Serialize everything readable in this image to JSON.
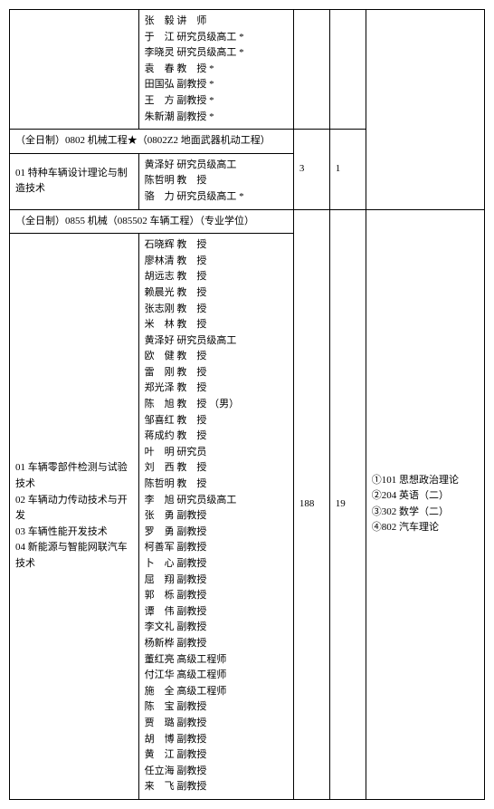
{
  "row1_faculty": [
    "张　毅 讲　师",
    "于　江 研究员级高工 *",
    "李晓灵 研究员级高工 *",
    "袁　春 教　授 *",
    "田国弘 副教授 *",
    "王　方 副教授 *",
    "朱新潮 副教授 *"
  ],
  "section2_header": "（全日制）0802 机械工程★（0802Z2 地面武器机动工程）",
  "section2_direction": "01 特种车辆设计理论与制造技术",
  "section2_faculty": [
    "黄泽好 研究员级高工",
    "陈哲明 教　授",
    "骆　力 研究员级高工 *"
  ],
  "section2_num1": "3",
  "section2_num2": "1",
  "section3_header": "（全日制）0855 机械（085502 车辆工程）（专业学位）",
  "section3_directions": "01 车辆零部件检测与试验技术\n02 车辆动力传动技术与开发\n03 车辆性能开发技术\n04 新能源与智能网联汽车技术",
  "section3_faculty": [
    "石晓辉 教　授",
    "廖林清 教　授",
    "胡远志 教　授",
    "赖晨光 教　授",
    "张志刚 教　授",
    "米　林 教　授",
    "黄泽好 研究员级高工",
    "欧　健 教　授",
    "雷　刚 教　授",
    "郑光泽 教　授",
    "陈　旭 教　授 （男）",
    "邹喜红 教　授",
    "蒋成约 教　授",
    "叶　明 研究员",
    "刘　西 教　授",
    "陈哲明 教　授",
    "李　旭 研究员级高工",
    "张　勇 副教授",
    "罗　勇 副教授",
    "柯善军 副教授",
    "卜　心 副教授",
    "屈　翔 副教授",
    "郭　栎 副教授",
    "谭　伟 副教授",
    "李文礼 副教授",
    "杨新桦 副教授",
    "董红亮 高级工程师",
    "付江华 高级工程师",
    "施　全 高级工程师",
    "陈　宝 副教授",
    "贾　璐 副教授",
    "胡　博 副教授",
    "黄　江 副教授",
    "任立海 副教授",
    "来　飞 副教授"
  ],
  "section3_num1": "188",
  "section3_num2": "19",
  "section3_exams": [
    "①101 思想政治理论",
    "②204 英语（二）",
    "③302 数学（二）",
    "④802 汽车理论"
  ]
}
